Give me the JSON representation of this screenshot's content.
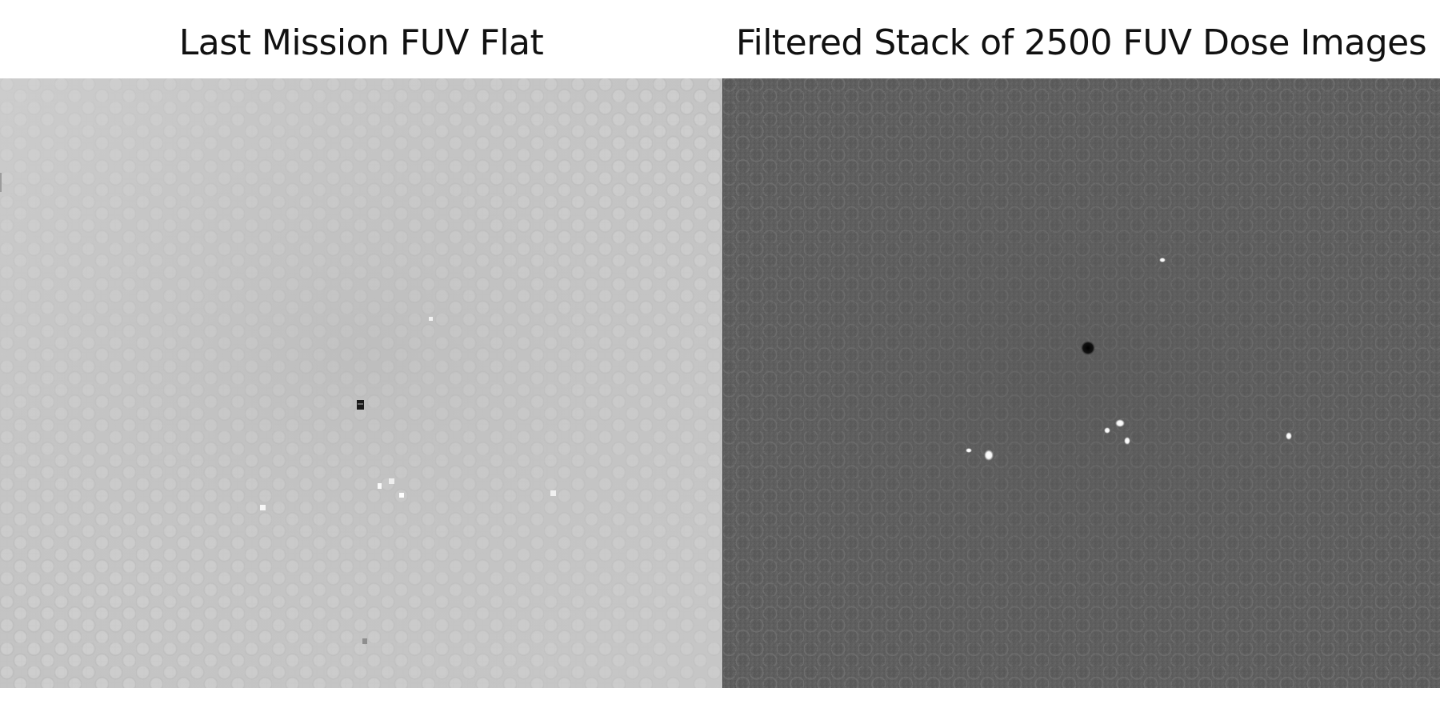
{
  "panels": [
    {
      "title": "Last Mission FUV Flat",
      "base_color": "#c4c4c4",
      "texture": "hexagonal-fiber-pattern",
      "colormap": "grayscale"
    },
    {
      "title": "Filtered Stack of 2500 FUV Dose Images",
      "base_color": "#5e5e5e",
      "texture": "hexagonal-fiber-pattern",
      "colormap": "grayscale"
    }
  ]
}
